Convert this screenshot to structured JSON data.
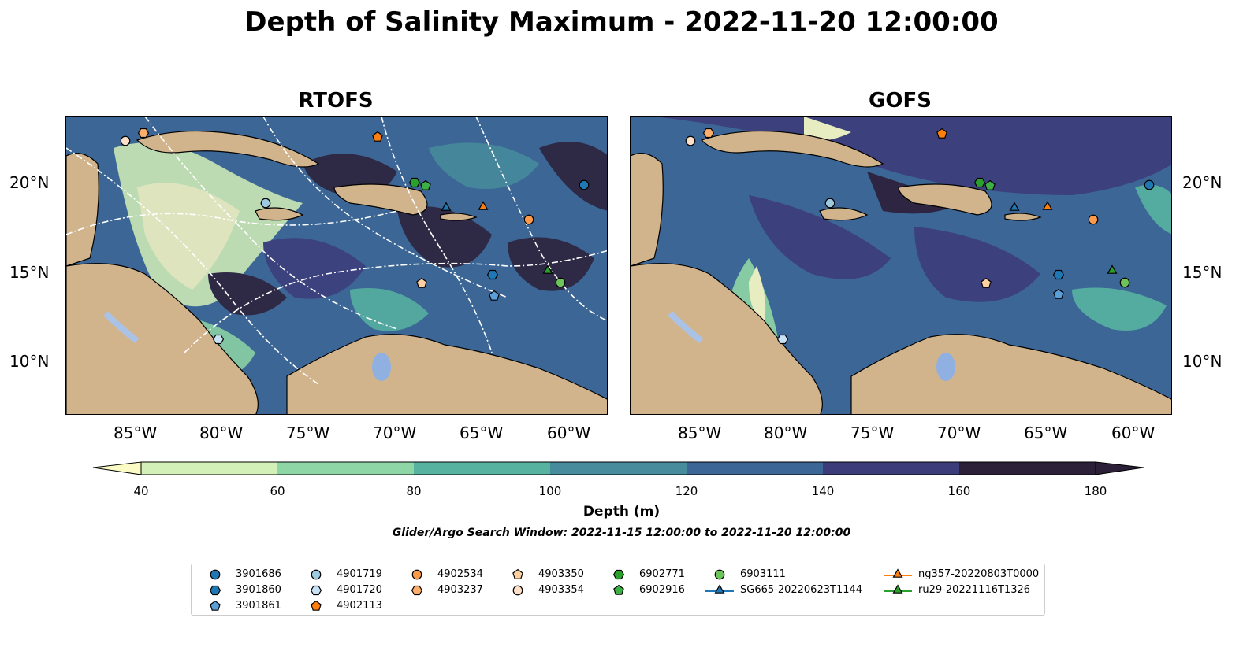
{
  "title": "Depth of Salinity Maximum - 2022-11-20 12:00:00",
  "panels": [
    {
      "title": "RTOFS"
    },
    {
      "title": "GOFS"
    }
  ],
  "lon_ticks": [
    "85°W",
    "80°W",
    "75°W",
    "70°W",
    "65°W",
    "60°W"
  ],
  "lat_ticks": [
    "20°N",
    "15°N",
    "10°N"
  ],
  "colorbar": {
    "label": "Depth (m)",
    "levels": [
      "40",
      "60",
      "80",
      "100",
      "120",
      "140",
      "160",
      "180"
    ],
    "colors": [
      "#fbfbc6",
      "#d3f0b8",
      "#8fd6a6",
      "#57b3a0",
      "#468c9c",
      "#3c6696",
      "#3c3c7a",
      "#2c1f38"
    ]
  },
  "search_window": "Glider/Argo Search Window: 2022-11-15 12:00:00 to 2022-11-20 12:00:00",
  "legend": {
    "items": [
      {
        "label": "3901686",
        "marker": "circle",
        "color": "#1f77b4"
      },
      {
        "label": "3901860",
        "marker": "hexagon",
        "color": "#1f77b4"
      },
      {
        "label": "3901861",
        "marker": "pentagon",
        "color": "#5a9fd8"
      },
      {
        "label": "4901719",
        "marker": "circle",
        "color": "#9ecae1"
      },
      {
        "label": "4901720",
        "marker": "hexagon",
        "color": "#c6e2f4"
      },
      {
        "label": "4902113",
        "marker": "pentagon",
        "color": "#ff7f0e"
      },
      {
        "label": "4902534",
        "marker": "circle",
        "color": "#fd9a4a"
      },
      {
        "label": "4903237",
        "marker": "hexagon",
        "color": "#fdae6b"
      },
      {
        "label": "4903350",
        "marker": "pentagon",
        "color": "#fdd0a2"
      },
      {
        "label": "4903354",
        "marker": "circle",
        "color": "#fee0c8"
      },
      {
        "label": "6902771",
        "marker": "hexagon",
        "color": "#2ca02c"
      },
      {
        "label": "6902916",
        "marker": "pentagon",
        "color": "#3cb043"
      },
      {
        "label": "6903111",
        "marker": "circle",
        "color": "#6cc45a"
      },
      {
        "label": "SG665-20220623T1144",
        "marker": "triangle",
        "color": "#1f77b4"
      },
      {
        "label": "ng357-20220803T0000",
        "marker": "triangle",
        "color": "#ff7f0e"
      },
      {
        "label": "ru29-20221116T1326",
        "marker": "triangle",
        "color": "#2ca02c"
      }
    ]
  },
  "colors": {
    "land": "#d2b48c",
    "lake": "#8fb0e0",
    "river": "#a9c2e6"
  }
}
